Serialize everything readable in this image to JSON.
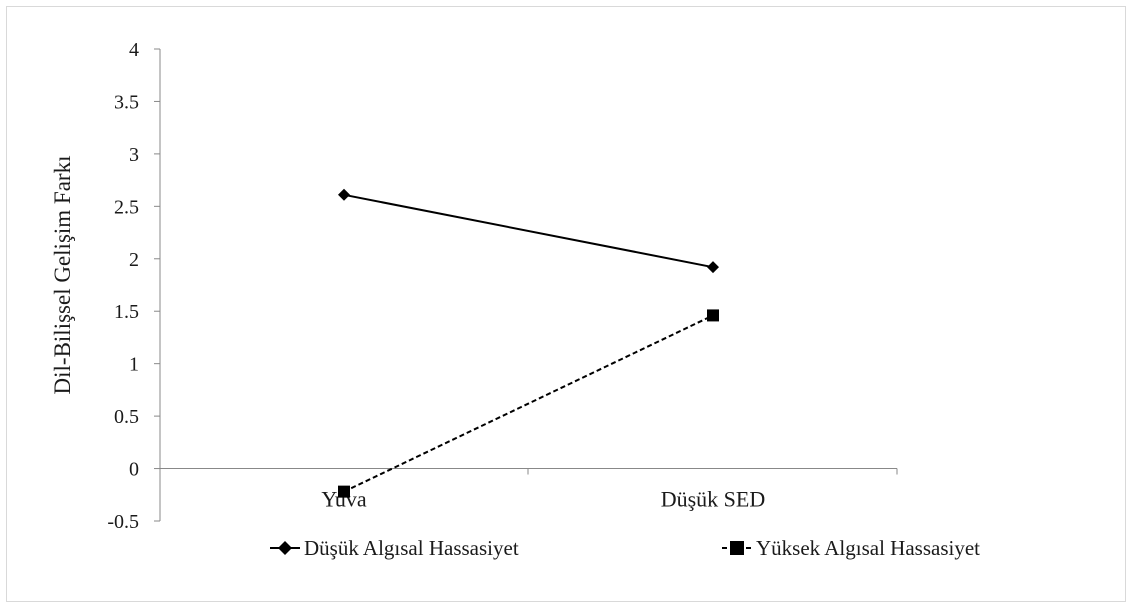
{
  "chart_data": {
    "type": "line",
    "categories": [
      "Yuva",
      "Düşük SED"
    ],
    "ylabel": "Dil-Bilişsel Gelişim Farkı",
    "xlabel": "",
    "ylim": [
      -0.5,
      4
    ],
    "yticks": [
      4,
      3.5,
      3,
      2.5,
      2,
      1.5,
      1,
      0.5,
      0,
      -0.5
    ],
    "ytick_labels": [
      "4",
      "3.5",
      "3",
      "2.5",
      "2",
      "1.5",
      "1",
      "0.5",
      "0",
      "-0.5"
    ],
    "grid": false,
    "legend_position": "bottom",
    "series": [
      {
        "name": "Düşük Algısal Hassasiyet",
        "values": [
          2.61,
          1.92
        ],
        "marker": "diamond",
        "line_style": "solid",
        "color": "#000000"
      },
      {
        "name": "Yüksek Algısal Hassasiyet",
        "values": [
          -0.22,
          1.46
        ],
        "marker": "square",
        "line_style": "dashed",
        "color": "#000000"
      }
    ]
  }
}
